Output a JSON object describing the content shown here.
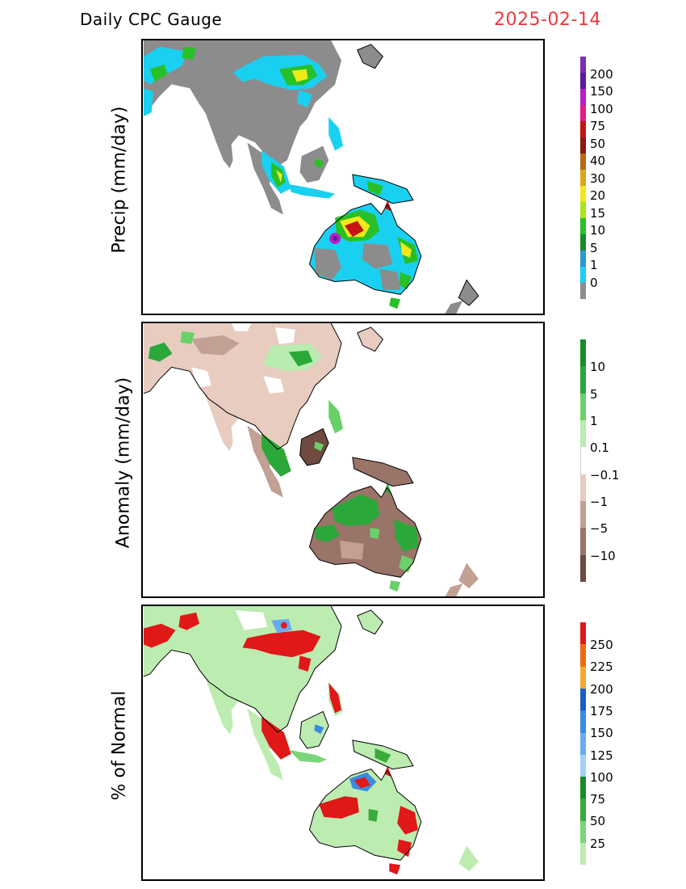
{
  "header": {
    "title": "Daily CPC Gauge",
    "date": "2025-02-14"
  },
  "panels": [
    {
      "id": "precip",
      "ylabel": "Precip (mm/day)",
      "colorbar": {
        "labels": [
          "200",
          "150",
          "100",
          "75",
          "50",
          "40",
          "30",
          "20",
          "15",
          "10",
          "5",
          "1",
          "0"
        ],
        "colors": [
          "#7b2cb0",
          "#5a1a9a",
          "#b91ec8",
          "#e21c8a",
          "#c41414",
          "#8b1a0a",
          "#b86a10",
          "#d8a81a",
          "#f2e81a",
          "#a8e61a",
          "#28c028",
          "#1a8a2a",
          "#2a9ad0",
          "#1ad0f0",
          "#8c8c8c"
        ]
      }
    },
    {
      "id": "anomaly",
      "ylabel": "Anomaly (mm/day)",
      "colorbar": {
        "labels": [
          "10",
          "5",
          "1",
          "0.1",
          "−0.1",
          "−1",
          "−5",
          "−10"
        ],
        "colors": [
          "#1a8a2a",
          "#2aa83a",
          "#6ad06a",
          "#b8ecb0",
          "#ffffff",
          "#e8ccc0",
          "#c2a094",
          "#9a7468",
          "#6e4a40"
        ]
      }
    },
    {
      "id": "percent",
      "ylabel": "% of Normal",
      "colorbar": {
        "labels": [
          "250",
          "225",
          "200",
          "175",
          "150",
          "125",
          "100",
          "75",
          "50",
          "25"
        ],
        "colors": [
          "#e01818",
          "#f06a10",
          "#f8a830",
          "#1a5ec8",
          "#3a8ae0",
          "#6aaaf0",
          "#a8cef8",
          "#1a8a2a",
          "#3aaa3a",
          "#7ad47a",
          "#bcecb0"
        ]
      }
    }
  ]
}
